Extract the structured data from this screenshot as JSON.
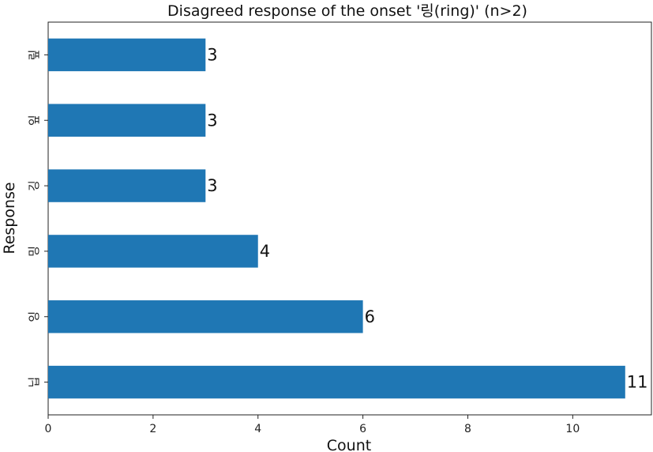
{
  "chart_data": {
    "type": "bar",
    "orientation": "horizontal",
    "title": "Disagreed response of the onset '링(ring)' (n>2)",
    "xlabel": "Count",
    "ylabel": "Response",
    "categories": [
      "닙",
      "잉",
      "밍",
      "깅",
      "잎",
      "맆"
    ],
    "values": [
      11,
      6,
      4,
      3,
      3,
      3
    ],
    "value_labels": [
      "11",
      "6",
      "4",
      "3",
      "3",
      "3"
    ],
    "xlim": [
      0,
      11.5
    ],
    "xticks": [
      0,
      2,
      4,
      6,
      8,
      10
    ],
    "xtick_labels": [
      "0",
      "2",
      "4",
      "6",
      "8",
      "10"
    ],
    "grid": false,
    "bar_color": "#1f77b4"
  }
}
